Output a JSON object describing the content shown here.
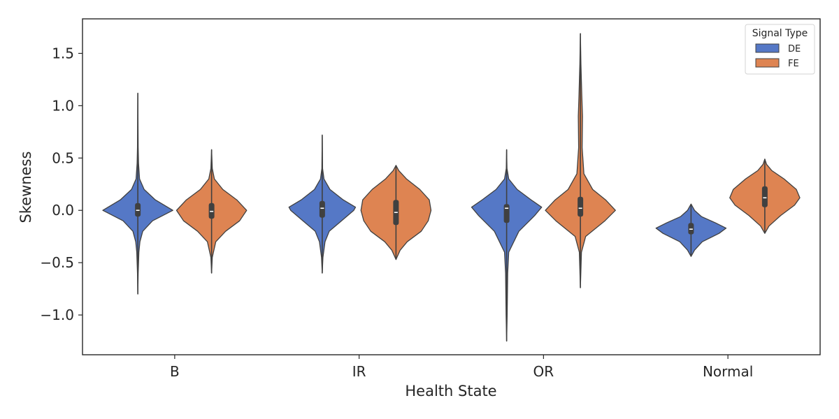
{
  "chart_data": {
    "type": "violin",
    "xlabel": "Health State",
    "ylabel": "Skewness",
    "categories": [
      "B",
      "IR",
      "OR",
      "Normal"
    ],
    "ylim": [
      -1.38,
      1.83
    ],
    "yticks": [
      -1.0,
      -0.5,
      0.0,
      0.5,
      1.0,
      1.5
    ],
    "ytick_labels": [
      "−1.0",
      "−0.5",
      "0.0",
      "0.5",
      "1.0",
      "1.5"
    ],
    "grid": false,
    "legend": {
      "title": "Signal Type",
      "position": "top-right",
      "entries": [
        {
          "label": "DE",
          "color": "#5578c6"
        },
        {
          "label": "FE",
          "color": "#de8452"
        }
      ]
    },
    "series": [
      {
        "name": "DE",
        "color": "#5578c6",
        "stats": [
          {
            "min": -0.8,
            "max": 1.12,
            "q1": -0.06,
            "median": 0.0,
            "q3": 0.07,
            "profile": [
              [
                -0.8,
                0.0
              ],
              [
                -0.6,
                0.01
              ],
              [
                -0.4,
                0.03
              ],
              [
                -0.3,
                0.06
              ],
              [
                -0.2,
                0.14
              ],
              [
                -0.1,
                0.42
              ],
              [
                0.0,
                1.0
              ],
              [
                0.1,
                0.5
              ],
              [
                0.2,
                0.18
              ],
              [
                0.3,
                0.05
              ],
              [
                0.45,
                0.02
              ],
              [
                0.6,
                0.01
              ],
              [
                1.12,
                0.0
              ]
            ]
          },
          {
            "min": -0.6,
            "max": 0.72,
            "q1": -0.07,
            "median": 0.02,
            "q3": 0.09,
            "profile": [
              [
                -0.6,
                0.0
              ],
              [
                -0.45,
                0.02
              ],
              [
                -0.3,
                0.08
              ],
              [
                -0.2,
                0.2
              ],
              [
                -0.1,
                0.55
              ],
              [
                0.0,
                0.9
              ],
              [
                0.03,
                0.95
              ],
              [
                0.1,
                0.6
              ],
              [
                0.2,
                0.22
              ],
              [
                0.3,
                0.05
              ],
              [
                0.4,
                0.01
              ],
              [
                0.72,
                0.0
              ]
            ]
          },
          {
            "min": -1.25,
            "max": 0.58,
            "q1": -0.12,
            "median": 0.02,
            "q3": 0.06,
            "profile": [
              [
                -1.25,
                0.0
              ],
              [
                -1.0,
                0.015
              ],
              [
                -0.6,
                0.03
              ],
              [
                -0.4,
                0.06
              ],
              [
                -0.2,
                0.35
              ],
              [
                -0.05,
                0.8
              ],
              [
                0.03,
                1.0
              ],
              [
                0.1,
                0.7
              ],
              [
                0.2,
                0.3
              ],
              [
                0.3,
                0.06
              ],
              [
                0.4,
                0.01
              ],
              [
                0.58,
                0.0
              ]
            ]
          },
          {
            "min": -0.44,
            "max": 0.06,
            "q1": -0.23,
            "median": -0.18,
            "q3": -0.12,
            "profile": [
              [
                -0.44,
                0.0
              ],
              [
                -0.38,
                0.1
              ],
              [
                -0.3,
                0.32
              ],
              [
                -0.22,
                0.8
              ],
              [
                -0.17,
                1.0
              ],
              [
                -0.12,
                0.7
              ],
              [
                -0.06,
                0.3
              ],
              [
                0.0,
                0.1
              ],
              [
                0.06,
                0.0
              ]
            ]
          }
        ]
      },
      {
        "name": "FE",
        "color": "#de8452",
        "stats": [
          {
            "min": -0.6,
            "max": 0.58,
            "q1": -0.08,
            "median": -0.01,
            "q3": 0.07,
            "profile": [
              [
                -0.6,
                0.0
              ],
              [
                -0.45,
                0.02
              ],
              [
                -0.3,
                0.12
              ],
              [
                -0.2,
                0.4
              ],
              [
                -0.1,
                0.8
              ],
              [
                0.0,
                1.0
              ],
              [
                0.1,
                0.72
              ],
              [
                0.2,
                0.32
              ],
              [
                0.3,
                0.08
              ],
              [
                0.4,
                0.02
              ],
              [
                0.58,
                0.0
              ]
            ]
          },
          {
            "min": -0.47,
            "max": 0.43,
            "q1": -0.14,
            "median": -0.02,
            "q3": 0.1,
            "profile": [
              [
                -0.47,
                0.0
              ],
              [
                -0.38,
                0.12
              ],
              [
                -0.3,
                0.32
              ],
              [
                -0.2,
                0.72
              ],
              [
                -0.1,
                0.92
              ],
              [
                0.0,
                1.0
              ],
              [
                0.1,
                0.95
              ],
              [
                0.2,
                0.68
              ],
              [
                0.3,
                0.3
              ],
              [
                0.38,
                0.08
              ],
              [
                0.43,
                0.0
              ]
            ]
          },
          {
            "min": -0.74,
            "max": 1.69,
            "q1": -0.06,
            "median": 0.02,
            "q3": 0.13,
            "profile": [
              [
                -0.74,
                0.0
              ],
              [
                -0.4,
                0.03
              ],
              [
                -0.25,
                0.15
              ],
              [
                -0.1,
                0.7
              ],
              [
                0.0,
                1.0
              ],
              [
                0.1,
                0.72
              ],
              [
                0.2,
                0.35
              ],
              [
                0.35,
                0.1
              ],
              [
                0.6,
                0.05
              ],
              [
                0.9,
                0.06
              ],
              [
                1.1,
                0.04
              ],
              [
                1.4,
                0.015
              ],
              [
                1.69,
                0.0
              ]
            ]
          },
          {
            "min": -0.22,
            "max": 0.49,
            "q1": 0.03,
            "median": 0.12,
            "q3": 0.23,
            "profile": [
              [
                -0.22,
                0.0
              ],
              [
                -0.15,
                0.12
              ],
              [
                -0.05,
                0.45
              ],
              [
                0.05,
                0.85
              ],
              [
                0.12,
                1.0
              ],
              [
                0.2,
                0.9
              ],
              [
                0.3,
                0.55
              ],
              [
                0.38,
                0.2
              ],
              [
                0.44,
                0.05
              ],
              [
                0.49,
                0.0
              ]
            ]
          }
        ]
      }
    ]
  }
}
